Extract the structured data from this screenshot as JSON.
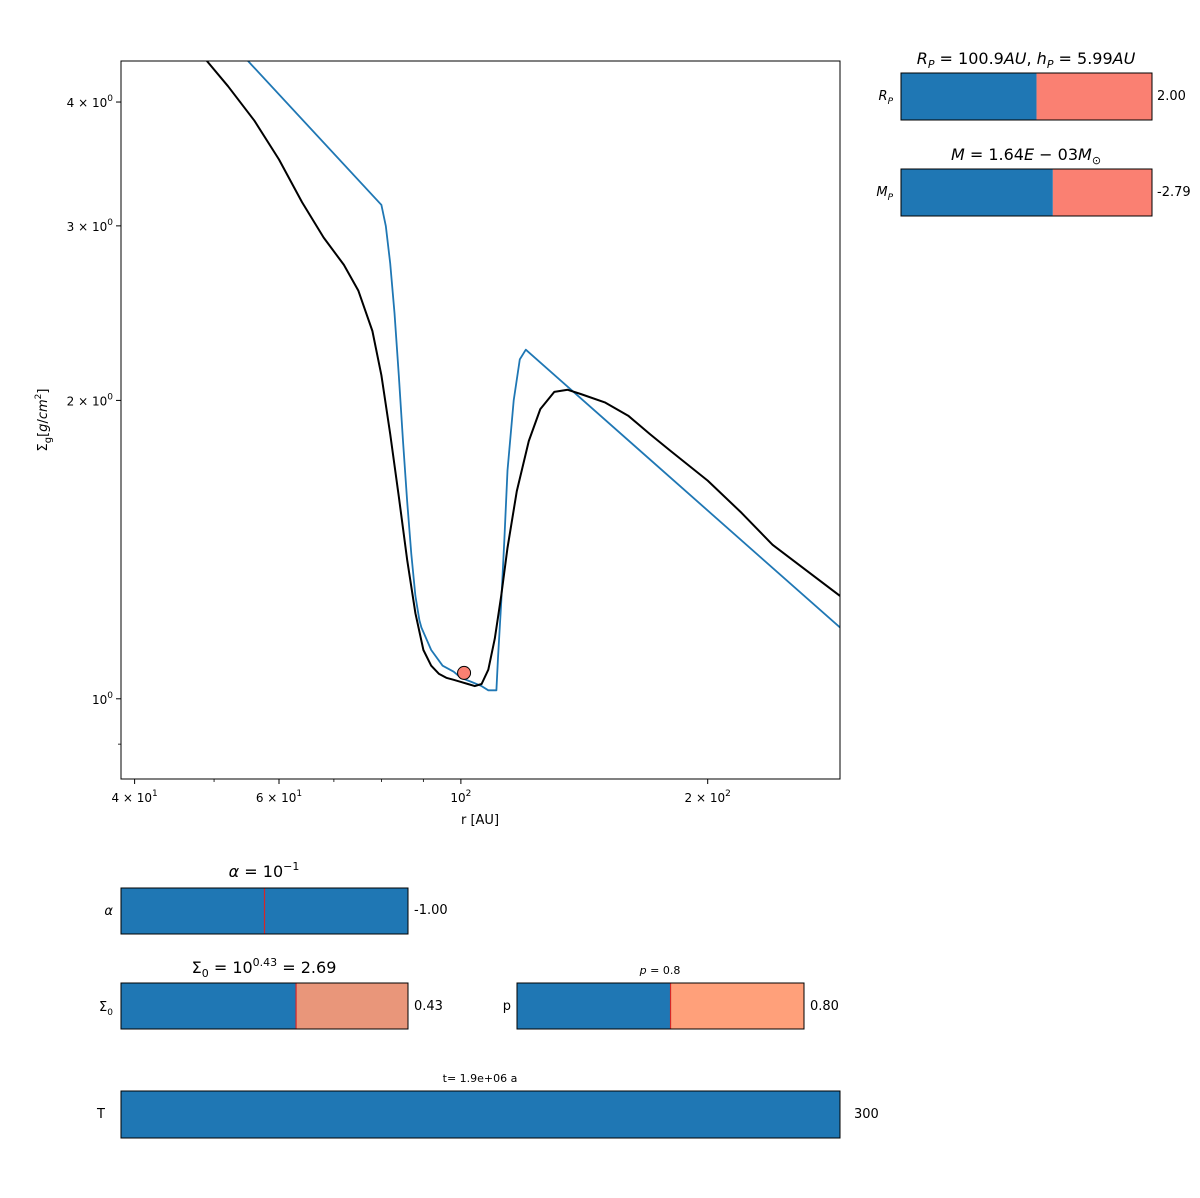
{
  "chart_data": {
    "type": "line",
    "xlabel": "r [AU]",
    "ylabel": "Σ_g[g/cm^2]",
    "xscale": "log",
    "yscale": "log",
    "xlim": [
      38.5,
      290
    ],
    "ylim": [
      0.83,
      4.4
    ],
    "grid": false,
    "xticks": [
      {
        "value": 40,
        "label": "4 × 10^1"
      },
      {
        "value": 60,
        "label": "6 × 10^1"
      },
      {
        "value": 100,
        "label": "10^2"
      },
      {
        "value": 200,
        "label": "2 × 10^2"
      }
    ],
    "yticks": [
      {
        "value": 1,
        "label": "10^0"
      },
      {
        "value": 2,
        "label": "2 × 10^0"
      },
      {
        "value": 3,
        "label": "3 × 10^0"
      },
      {
        "value": 4,
        "label": "4 × 10^0"
      }
    ],
    "series": [
      {
        "color": "#000000",
        "x": [
          49,
          52,
          56,
          60,
          64,
          68,
          72,
          75,
          78,
          80,
          82,
          84,
          86,
          88,
          90,
          92,
          94,
          96,
          98,
          100,
          102,
          104,
          106,
          108,
          110,
          112,
          114,
          117,
          121,
          125,
          130,
          135,
          140,
          150,
          160,
          170,
          180,
          200,
          220,
          240,
          260,
          290
        ],
        "y": [
          4.4,
          4.15,
          3.83,
          3.5,
          3.17,
          2.92,
          2.74,
          2.58,
          2.35,
          2.12,
          1.85,
          1.6,
          1.38,
          1.22,
          1.12,
          1.08,
          1.06,
          1.05,
          1.045,
          1.04,
          1.035,
          1.03,
          1.035,
          1.07,
          1.15,
          1.27,
          1.42,
          1.62,
          1.82,
          1.96,
          2.04,
          2.05,
          2.03,
          1.99,
          1.93,
          1.85,
          1.78,
          1.66,
          1.54,
          1.43,
          1.36,
          1.27
        ]
      },
      {
        "color": "#1f77b4",
        "x": [
          55,
          80,
          81,
          82,
          83,
          84,
          85,
          86,
          87,
          88,
          89,
          89.5,
          92,
          95,
          98,
          100,
          103,
          106,
          108,
          110,
          110.5,
          111,
          112,
          113,
          114,
          116,
          118,
          120,
          290
        ],
        "y": [
          4.4,
          3.15,
          3.0,
          2.75,
          2.45,
          2.12,
          1.82,
          1.58,
          1.4,
          1.27,
          1.2,
          1.18,
          1.12,
          1.08,
          1.065,
          1.05,
          1.04,
          1.03,
          1.02,
          1.02,
          1.02,
          1.1,
          1.25,
          1.45,
          1.7,
          2.0,
          2.2,
          2.25,
          1.18
        ]
      }
    ],
    "marker": {
      "x": 100.9,
      "y": 1.062,
      "color": "#fa8072"
    }
  },
  "sliders": {
    "rp": {
      "label": "R_P",
      "title": "R_P = 100.9AU, h_P = 5.99AU",
      "value_text": "2.00",
      "fill": 0.54,
      "color_left": "#1f77b4",
      "color_right": "#fa8072"
    },
    "mp": {
      "label": "M_P",
      "title": "M = 1.64E − 03M_⊙",
      "value_text": "-2.79",
      "fill": 0.605,
      "color_left": "#1f77b4",
      "color_right": "#fa8072"
    },
    "alpha": {
      "label": "α",
      "title": "α = 10^−1",
      "value_text": "-1.00",
      "fill": 1.0,
      "marker": 0.5,
      "color_left": "#1f77b4",
      "color_right": "#1f77b4"
    },
    "sigma0": {
      "label": "Σ_0",
      "title": "Σ_0 = 10^0.43 = 2.69",
      "value_text": "0.43",
      "fill": 0.61,
      "marker": 0.61,
      "color_left": "#1f77b4",
      "color_right": "#e9967a"
    },
    "p": {
      "label": "p",
      "title": "p = 0.8",
      "value_text": "0.80",
      "fill": 0.535,
      "marker": 0.535,
      "color_left": "#1f77b4",
      "color_right": "#ffa07a"
    },
    "t": {
      "label": "T",
      "title": "t= 1.9e+06 a",
      "value_text": "300",
      "fill": 1.0,
      "color_left": "#1f77b4",
      "color_right": "#1f77b4"
    }
  }
}
